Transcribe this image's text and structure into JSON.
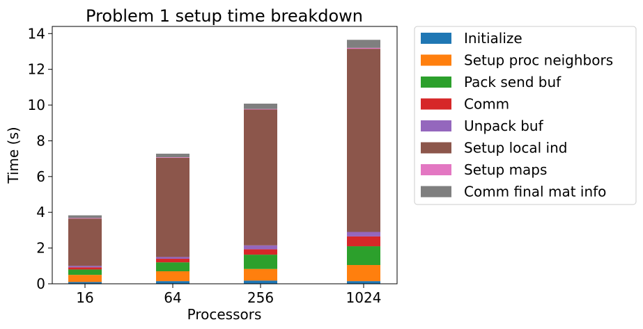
{
  "chart_data": {
    "type": "bar",
    "stacked": true,
    "title": "Problem 1 setup time breakdown",
    "xlabel": "Processors",
    "ylabel": "Time (s)",
    "categories": [
      "16",
      "64",
      "256",
      "1024"
    ],
    "ylim": [
      0,
      14.4
    ],
    "yticks": [
      0,
      2,
      4,
      6,
      8,
      10,
      12,
      14
    ],
    "grid": false,
    "legend_position": "outside-right",
    "series": [
      {
        "name": "Initialize",
        "color": "#1f77b4",
        "values": [
          0.1,
          0.15,
          0.18,
          0.15
        ]
      },
      {
        "name": "Setup proc neighbors",
        "color": "#ff7f0e",
        "values": [
          0.4,
          0.55,
          0.65,
          0.9
        ]
      },
      {
        "name": "Pack send buf",
        "color": "#2ca02c",
        "values": [
          0.3,
          0.5,
          0.8,
          1.05
        ]
      },
      {
        "name": "Comm",
        "color": "#d62728",
        "values": [
          0.12,
          0.2,
          0.3,
          0.55
        ]
      },
      {
        "name": "Unpack buf",
        "color": "#9467bd",
        "values": [
          0.08,
          0.1,
          0.22,
          0.25
        ]
      },
      {
        "name": "Setup local ind",
        "color": "#8c564b",
        "values": [
          2.65,
          5.55,
          7.6,
          10.25
        ]
      },
      {
        "name": "Setup maps",
        "color": "#e377c2",
        "values": [
          0.03,
          0.03,
          0.03,
          0.05
        ]
      },
      {
        "name": "Comm final mat info",
        "color": "#7f7f7f",
        "values": [
          0.15,
          0.2,
          0.3,
          0.45
        ]
      }
    ]
  }
}
